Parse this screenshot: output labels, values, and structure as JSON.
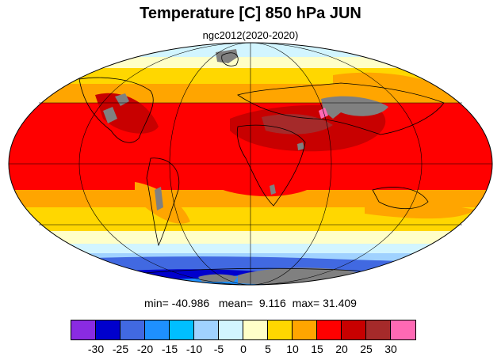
{
  "title": "Temperature [C] 850 hPa JUN",
  "subtitle": "ngc2012(2020-2020)",
  "stats": {
    "min_label": "min=",
    "min": "-40.986",
    "mean_label": "mean=",
    "mean": "9.116",
    "max_label": "max=",
    "max": "31.409"
  },
  "colorbar": {
    "colors": [
      "#8a2be2",
      "#0000cd",
      "#4169e1",
      "#1e90ff",
      "#00bfff",
      "#a0d2ff",
      "#d2f5ff",
      "#ffffc8",
      "#ffd700",
      "#ffa500",
      "#ff0000",
      "#c80000",
      "#a52a2a",
      "#ff69b4"
    ],
    "tick_labels": [
      "-30",
      "-25",
      "-20",
      "-15",
      "-10",
      "-5",
      "0",
      "5",
      "10",
      "15",
      "20",
      "25",
      "30"
    ]
  },
  "missing_color": "#808080",
  "projection": "mollweide"
}
